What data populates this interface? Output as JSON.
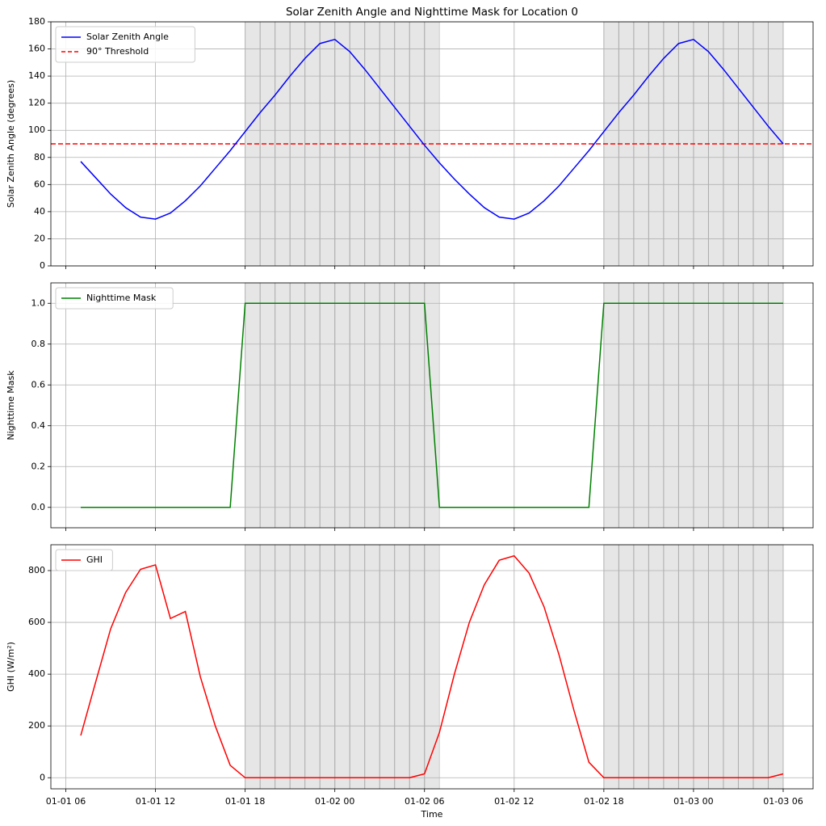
{
  "chart_data": [
    {
      "type": "line",
      "title": "Solar Zenith Angle and Nighttime Mask for Location 0",
      "ylabel": "Solar Zenith Angle (degrees)",
      "x": [
        "01-01 07",
        "01-01 08",
        "01-01 09",
        "01-01 10",
        "01-01 11",
        "01-01 12",
        "01-01 13",
        "01-01 14",
        "01-01 15",
        "01-01 16",
        "01-01 17",
        "01-01 18",
        "01-01 19",
        "01-01 20",
        "01-01 21",
        "01-01 22",
        "01-01 23",
        "01-02 00",
        "01-02 01",
        "01-02 02",
        "01-02 03",
        "01-02 04",
        "01-02 05",
        "01-02 06",
        "01-02 07",
        "01-02 08",
        "01-02 09",
        "01-02 10",
        "01-02 11",
        "01-02 12",
        "01-02 13",
        "01-02 14",
        "01-02 15",
        "01-02 16",
        "01-02 17",
        "01-02 18",
        "01-02 19",
        "01-02 20",
        "01-02 21",
        "01-02 22",
        "01-02 23",
        "01-03 00",
        "01-03 01",
        "01-03 02",
        "01-03 03",
        "01-03 04",
        "01-03 05",
        "01-03 06"
      ],
      "series": [
        {
          "name": "Solar Zenith Angle",
          "color": "#0000ff",
          "values": [
            77,
            65,
            53,
            43,
            36,
            34.5,
            39,
            48,
            59,
            72,
            85,
            99,
            113,
            126,
            140,
            153,
            164,
            167,
            158,
            145,
            131,
            117,
            103,
            89,
            76,
            64,
            53,
            43,
            36,
            34.5,
            39,
            48,
            59,
            72,
            85,
            99,
            113,
            126,
            140,
            153,
            164,
            167,
            158,
            145,
            131,
            117,
            103,
            90
          ]
        }
      ],
      "hlines": [
        {
          "name": "90° Threshold",
          "value": 90,
          "color": "#ff0000",
          "dashed": true
        }
      ],
      "xlim": [
        "01-01 05",
        "01-03 08"
      ],
      "xticks": [
        "01-01 06",
        "01-01 12",
        "01-01 18",
        "01-02 00",
        "01-02 06",
        "01-02 12",
        "01-02 18",
        "01-03 00",
        "01-03 06"
      ],
      "ylim": [
        0,
        180
      ],
      "yticks": [
        0,
        20,
        40,
        60,
        80,
        100,
        120,
        140,
        160,
        180
      ],
      "grid": true,
      "legend": "upper-left",
      "night_shading": true
    },
    {
      "type": "line",
      "ylabel": "Nighttime Mask",
      "x": [
        "01-01 07",
        "01-01 08",
        "01-01 09",
        "01-01 10",
        "01-01 11",
        "01-01 12",
        "01-01 13",
        "01-01 14",
        "01-01 15",
        "01-01 16",
        "01-01 17",
        "01-01 18",
        "01-01 19",
        "01-01 20",
        "01-01 21",
        "01-01 22",
        "01-01 23",
        "01-02 00",
        "01-02 01",
        "01-02 02",
        "01-02 03",
        "01-02 04",
        "01-02 05",
        "01-02 06",
        "01-02 07",
        "01-02 08",
        "01-02 09",
        "01-02 10",
        "01-02 11",
        "01-02 12",
        "01-02 13",
        "01-02 14",
        "01-02 15",
        "01-02 16",
        "01-02 17",
        "01-02 18",
        "01-02 19",
        "01-02 20",
        "01-02 21",
        "01-02 22",
        "01-02 23",
        "01-03 00",
        "01-03 01",
        "01-03 02",
        "01-03 03",
        "01-03 04",
        "01-03 05",
        "01-03 06"
      ],
      "series": [
        {
          "name": "Nighttime Mask",
          "color": "#008000",
          "values": [
            0,
            0,
            0,
            0,
            0,
            0,
            0,
            0,
            0,
            0,
            0,
            1,
            1,
            1,
            1,
            1,
            1,
            1,
            1,
            1,
            1,
            1,
            1,
            1,
            0,
            0,
            0,
            0,
            0,
            0,
            0,
            0,
            0,
            0,
            0,
            1,
            1,
            1,
            1,
            1,
            1,
            1,
            1,
            1,
            1,
            1,
            1,
            1
          ]
        }
      ],
      "xlim": [
        "01-01 05",
        "01-03 08"
      ],
      "xticks": [
        "01-01 06",
        "01-01 12",
        "01-01 18",
        "01-02 00",
        "01-02 06",
        "01-02 12",
        "01-02 18",
        "01-03 00",
        "01-03 06"
      ],
      "ylim": [
        -0.1,
        1.1
      ],
      "yticks": [
        {
          "value": 0,
          "label": "0.0"
        },
        0.2,
        0.4,
        0.6,
        0.8,
        {
          "value": 1,
          "label": "1.0"
        }
      ],
      "grid": true,
      "legend": "upper-left",
      "night_shading": true
    },
    {
      "type": "line",
      "ylabel": "GHI (W/m²)",
      "xlabel": "Time",
      "x": [
        "01-01 07",
        "01-01 08",
        "01-01 09",
        "01-01 10",
        "01-01 11",
        "01-01 12",
        "01-01 13",
        "01-01 14",
        "01-01 15",
        "01-01 16",
        "01-01 17",
        "01-01 18",
        "01-01 19",
        "01-01 20",
        "01-01 21",
        "01-01 22",
        "01-01 23",
        "01-02 00",
        "01-02 01",
        "01-02 02",
        "01-02 03",
        "01-02 04",
        "01-02 05",
        "01-02 06",
        "01-02 07",
        "01-02 08",
        "01-02 09",
        "01-02 10",
        "01-02 11",
        "01-02 12",
        "01-02 13",
        "01-02 14",
        "01-02 15",
        "01-02 16",
        "01-02 17",
        "01-02 18",
        "01-02 19",
        "01-02 20",
        "01-02 21",
        "01-02 22",
        "01-02 23",
        "01-03 00",
        "01-03 01",
        "01-03 02",
        "01-03 03",
        "01-03 04",
        "01-03 05",
        "01-03 06"
      ],
      "series": [
        {
          "name": "GHI",
          "color": "#ff0000",
          "values": [
            163,
            370,
            575,
            715,
            805,
            822,
            615,
            642,
            390,
            200,
            48,
            0,
            0,
            0,
            0,
            0,
            0,
            0,
            0,
            0,
            0,
            0,
            0,
            15,
            175,
            400,
            600,
            745,
            840,
            857,
            790,
            660,
            475,
            260,
            60,
            0,
            0,
            0,
            0,
            0,
            0,
            0,
            0,
            0,
            0,
            0,
            0,
            15
          ]
        }
      ],
      "xlim": [
        "01-01 05",
        "01-03 08"
      ],
      "xticks": [
        "01-01 06",
        "01-01 12",
        "01-01 18",
        "01-02 00",
        "01-02 06",
        "01-02 12",
        "01-02 18",
        "01-03 00",
        "01-03 06"
      ],
      "show_xtick_labels": true,
      "ylim": [
        -42.85,
        899.85
      ],
      "yticks": [
        0,
        200,
        400,
        600,
        800
      ],
      "grid": true,
      "legend": "upper-left",
      "night_shading": true
    }
  ]
}
